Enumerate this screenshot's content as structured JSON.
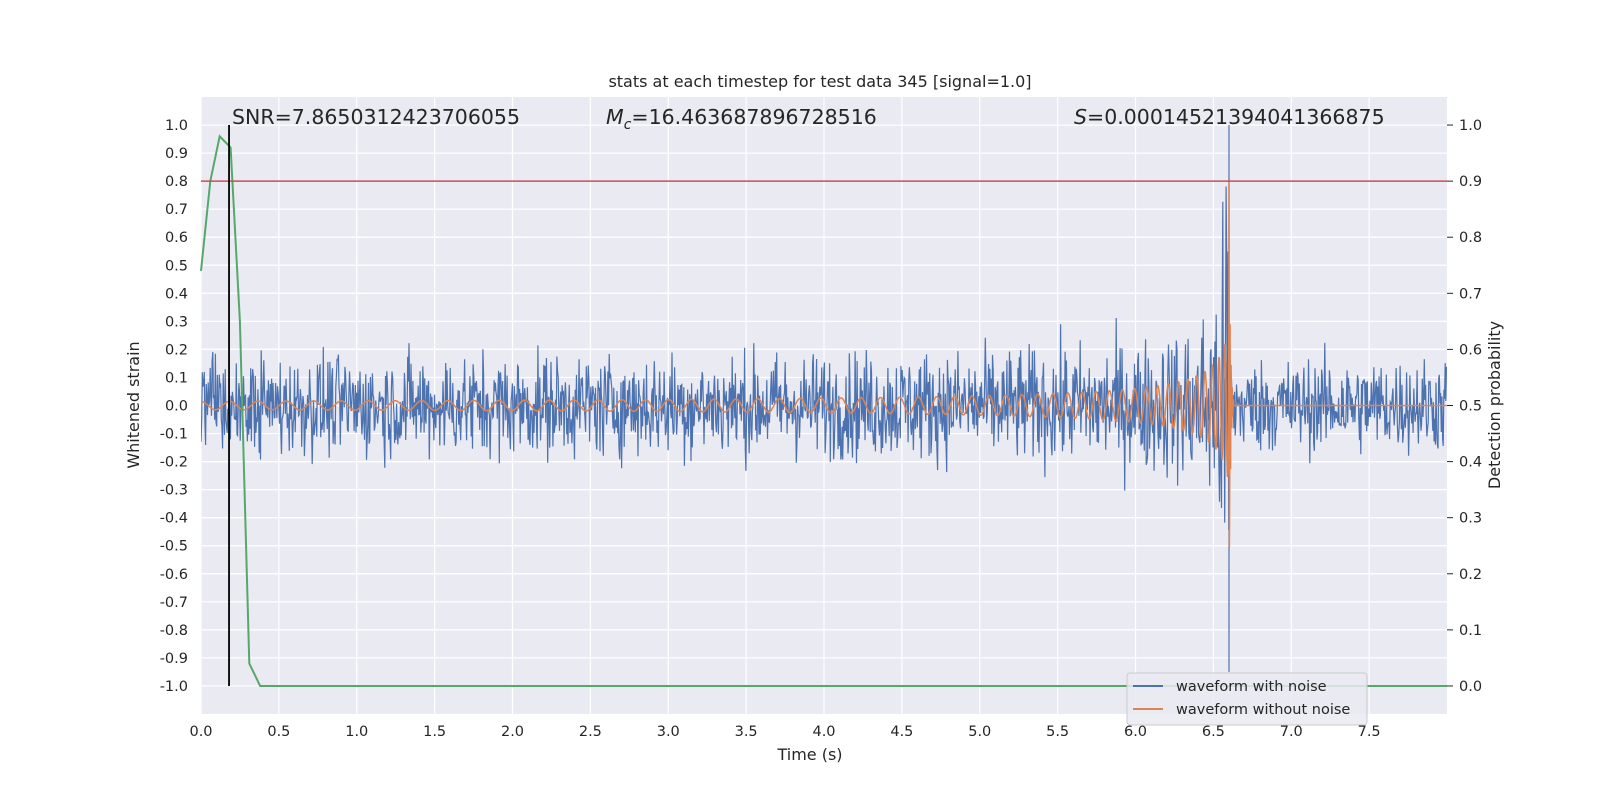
{
  "chart_data": {
    "type": "line",
    "title": "stats at each timestep for test data 345 [signal=1.0]",
    "xlabel": "Time (s)",
    "ylabel": "Whitened strain",
    "y2label": "Detection probability",
    "xlim": [
      0.0,
      8.0
    ],
    "ylim": [
      -1.1,
      1.1
    ],
    "y2lim": [
      -0.05,
      1.05
    ],
    "x_ticks": [
      "0.0",
      "0.5",
      "1.0",
      "1.5",
      "2.0",
      "2.5",
      "3.0",
      "3.5",
      "4.0",
      "4.5",
      "5.0",
      "5.5",
      "6.0",
      "6.5",
      "7.0",
      "7.5"
    ],
    "y_ticks": [
      "1.0",
      "0.9",
      "0.8",
      "0.7",
      "0.6",
      "0.5",
      "0.4",
      "0.3",
      "0.2",
      "0.1",
      "0.0",
      "-0.1",
      "-0.2",
      "-0.3",
      "-0.4",
      "-0.5",
      "-0.6",
      "-0.7",
      "-0.8",
      "-0.9",
      "-1.0"
    ],
    "y2_ticks": [
      "1.0",
      "0.9",
      "0.8",
      "0.7",
      "0.6",
      "0.5",
      "0.4",
      "0.3",
      "0.2",
      "0.1",
      "0.0"
    ],
    "grid": true,
    "legend_placement": "lower-right",
    "annotations": {
      "snr": "SNR=7.8650312423706055",
      "mc_symbol": "M",
      "mc_sub": "c",
      "mc_value": "=16.463687896728516",
      "s_symbol": "S",
      "s_value": "=0.00014521394041366875"
    },
    "threshold_line": {
      "y2": 0.9,
      "color": "#c44e52"
    },
    "marker_line": {
      "x": 0.18,
      "color": "#000000"
    },
    "merger_time": 6.6,
    "series": [
      {
        "name": "waveform with noise",
        "color": "#4c72b0",
        "noise_envelope": {
          "base_amplitude": 0.27,
          "peak_amplitude": 1.0
        }
      },
      {
        "name": "waveform without noise",
        "color": "#dd8452",
        "chirp": {
          "start_amplitude": 0.015,
          "peak_amplitude": 0.8,
          "end_time": 6.6
        }
      },
      {
        "name": "detection probability",
        "color": "#55a868",
        "axis": "right",
        "points": [
          [
            0.0,
            0.74
          ],
          [
            0.06,
            0.9
          ],
          [
            0.12,
            0.98
          ],
          [
            0.19,
            0.96
          ],
          [
            0.25,
            0.65
          ],
          [
            0.31,
            0.04
          ],
          [
            0.38,
            0.0
          ],
          [
            0.5,
            0.0
          ],
          [
            2.0,
            0.0
          ],
          [
            4.0,
            0.0
          ],
          [
            6.0,
            0.0
          ],
          [
            8.0,
            0.0
          ]
        ]
      }
    ]
  }
}
